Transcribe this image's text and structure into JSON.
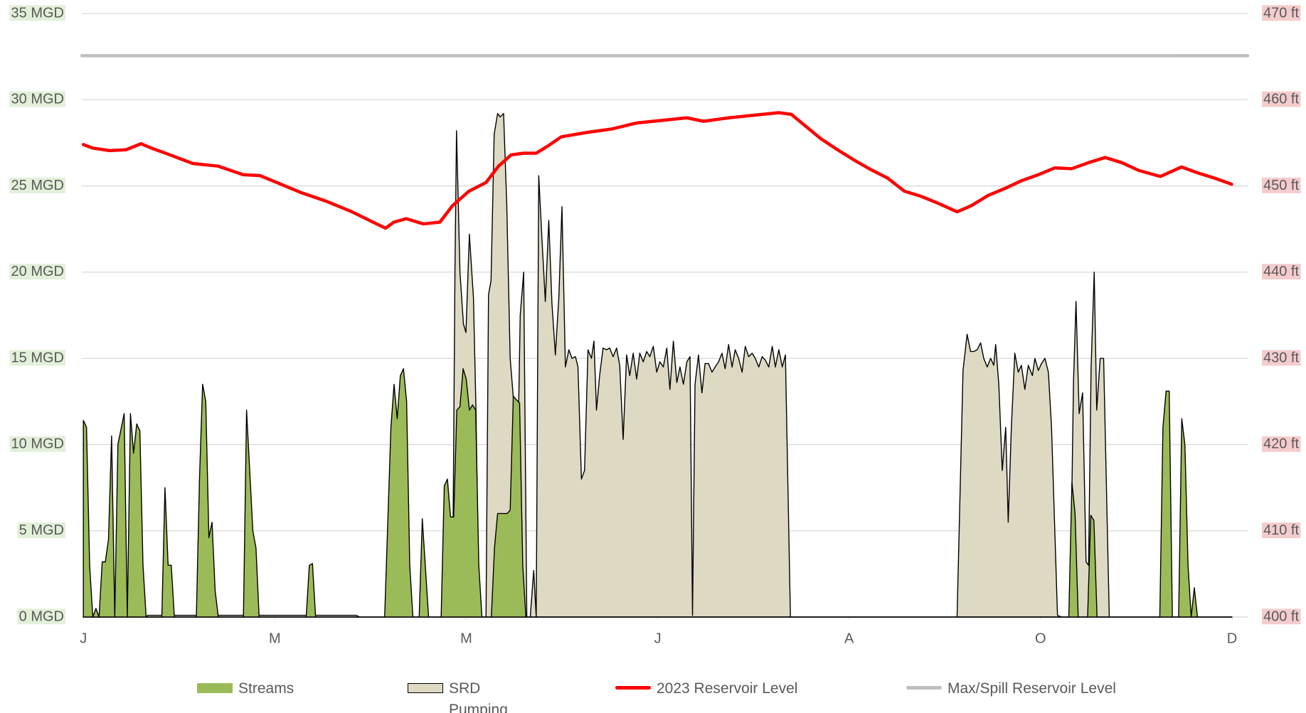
{
  "chart_data": {
    "type": "area",
    "legend": "bottom",
    "grid": true,
    "xlim": [
      -0.5,
      371
    ],
    "xticks": [
      {
        "value": 0,
        "label": "J"
      },
      {
        "value": 61,
        "label": "M"
      },
      {
        "value": 122,
        "label": "M"
      },
      {
        "value": 183,
        "label": "J"
      },
      {
        "value": 244,
        "label": "A"
      },
      {
        "value": 305,
        "label": "O"
      },
      {
        "value": 366,
        "label": "D"
      }
    ],
    "ylim": [
      0,
      35
    ],
    "yticks": [
      {
        "value": 0,
        "label": "0 MGD"
      },
      {
        "value": 5,
        "label": "5 MGD"
      },
      {
        "value": 10,
        "label": "10 MGD"
      },
      {
        "value": 15,
        "label": "15 MGD"
      },
      {
        "value": 20,
        "label": "20 MGD"
      },
      {
        "value": 25,
        "label": "25 MGD"
      },
      {
        "value": 30,
        "label": "30 MGD"
      },
      {
        "value": 35,
        "label": "35 MGD"
      }
    ],
    "y2lim": [
      400,
      470
    ],
    "y2ticks": [
      {
        "value": 400,
        "label": "400 ft"
      },
      {
        "value": 410,
        "label": "410 ft"
      },
      {
        "value": 420,
        "label": "420 ft"
      },
      {
        "value": 430,
        "label": "430 ft"
      },
      {
        "value": 440,
        "label": "440 ft"
      },
      {
        "value": 450,
        "label": "450 ft"
      },
      {
        "value": 460,
        "label": "460 ft"
      },
      {
        "value": 470,
        "label": "470 ft"
      }
    ],
    "series": [
      {
        "name": "SRD Pumping",
        "type": "area",
        "color": "#ddd9c3",
        "x": [
          0,
          20,
          20.5,
          87,
          88,
          117.6,
          118.4,
          118.9,
          120,
          121.1,
          121.9,
          123,
          124.3,
          125.1,
          126.1,
          128.3,
          129.1,
          129.9,
          130.9,
          132,
          132.8,
          133.9,
          134.9,
          136,
          137.1,
          138.4,
          139.2,
          140.3,
          141.3,
          142.4,
          143.5,
          144.3,
          145.1,
          146.1,
          147.2,
          148.3,
          149.3,
          150.4,
          151.5,
          152.5,
          153.6,
          154.7,
          155.7,
          156.8,
          157.6,
          158.7,
          159.7,
          160.8,
          161.9,
          162.7,
          163.5,
          164.5,
          165.6,
          166.7,
          167.7,
          168.8,
          169.9,
          170.9,
          172,
          173.1,
          174.1,
          175.2,
          176.3,
          177.3,
          178.4,
          179.5,
          180.5,
          181.6,
          182.7,
          183.7,
          184.8,
          185.9,
          186.9,
          188,
          189.1,
          190.1,
          191.2,
          192.3,
          193.3,
          194.1,
          194.9,
          196,
          197.1,
          198.1,
          199.2,
          200.3,
          201.3,
          202.4,
          203.5,
          204.5,
          205.6,
          206.7,
          207.7,
          208.8,
          209.9,
          210.9,
          212,
          213.1,
          214.1,
          215.2,
          216.3,
          217.3,
          218.4,
          219.5,
          220.5,
          221.6,
          222.7,
          223.7,
          225.3,
          278.4,
          280.3,
          281.6,
          282.7,
          283.7,
          284.8,
          285.9,
          286.9,
          288,
          289.1,
          290.1,
          290.7,
          291.7,
          292.8,
          293.9,
          294.7,
          295.7,
          296.8,
          297.9,
          298.9,
          300,
          301.1,
          302.4,
          303.2,
          304.3,
          305.3,
          306.4,
          307.5,
          308.5,
          310.4,
          311.7,
          314.4,
          315.5,
          316.3,
          317.3,
          318.4,
          319.5,
          320.3,
          321.1,
          322.1,
          322.9,
          324,
          325.1,
          326.9,
          366
        ],
        "values": [
          0,
          0,
          0.1,
          0.1,
          0,
          0,
          20,
          28.2,
          20,
          17,
          16.5,
          22.2,
          18.5,
          12,
          0,
          0,
          18.7,
          19.5,
          28,
          29.2,
          29,
          29.2,
          24,
          15,
          12.5,
          9,
          17.5,
          20,
          0,
          0,
          2.7,
          0,
          25.6,
          22,
          18.3,
          23,
          18.2,
          15.2,
          18.5,
          23.8,
          14.5,
          15.5,
          15,
          15.1,
          14.5,
          8,
          8.5,
          15.5,
          15,
          16,
          12,
          14,
          15.6,
          15.5,
          15.6,
          15.1,
          15.6,
          14.6,
          10.3,
          15.2,
          14,
          15.3,
          13.8,
          15.3,
          14.8,
          15.4,
          15.1,
          15.7,
          14.2,
          14.8,
          14.5,
          15.6,
          13.2,
          16,
          13.6,
          14.5,
          13.5,
          14.8,
          15.1,
          0.1,
          13.5,
          15.2,
          13,
          14.7,
          14.7,
          14.2,
          14.5,
          14.8,
          15.3,
          14.4,
          15.8,
          14.5,
          15.5,
          15,
          14.2,
          15.7,
          15.1,
          15.3,
          15,
          14.5,
          15.1,
          14.9,
          14.5,
          15.7,
          14.5,
          15.5,
          14.5,
          15.2,
          0,
          0,
          14.3,
          16.4,
          15.4,
          15.4,
          15.5,
          15.9,
          15,
          14.5,
          15,
          14.6,
          15.8,
          13.5,
          8.5,
          11,
          5.5,
          11,
          15.3,
          14.2,
          14.6,
          13.2,
          14.6,
          14,
          15,
          14.3,
          14.7,
          15,
          14.2,
          11,
          0.1,
          0,
          0,
          13.6,
          18.3,
          11.8,
          13,
          3.2,
          3,
          14.4,
          20,
          12,
          15,
          15,
          0,
          0
        ]
      },
      {
        "name": "Streams",
        "type": "area",
        "color": "#9bbb59",
        "x": [
          0,
          1,
          2,
          3,
          4,
          5,
          6,
          7,
          8,
          9,
          10,
          11,
          13,
          14,
          15,
          16,
          17,
          18,
          19,
          20,
          25,
          26,
          27,
          28,
          29,
          36,
          37,
          38,
          39,
          40,
          41,
          42,
          43,
          51,
          52,
          54,
          55,
          56,
          71,
          72,
          73,
          74,
          96,
          98,
          99,
          100,
          101,
          102,
          103,
          104,
          105,
          107,
          108,
          110,
          114,
          115,
          116,
          117,
          118,
          119,
          120,
          121,
          122,
          123,
          124,
          125,
          126,
          127,
          130,
          131,
          132,
          135,
          136,
          137,
          139,
          140,
          141,
          314,
          315,
          316,
          317,
          320,
          321,
          322,
          323,
          343,
          344,
          345,
          346,
          347,
          349,
          350,
          351,
          352,
          353,
          354,
          355,
          366
        ],
        "values": [
          11.4,
          11,
          3,
          0,
          0.5,
          0,
          3.2,
          3.2,
          4.5,
          10.5,
          0,
          10,
          11.8,
          0,
          11.8,
          9.5,
          11.2,
          10.8,
          3,
          0,
          0,
          7.5,
          3,
          3,
          0,
          0,
          8,
          13.5,
          12.5,
          4.6,
          5.5,
          1.5,
          0,
          0,
          12,
          5,
          4,
          0,
          0,
          3,
          3.1,
          0,
          0,
          11,
          13.5,
          11.5,
          14,
          14.4,
          12.5,
          3,
          0,
          0,
          5.7,
          0,
          0,
          7.6,
          8,
          5.8,
          5.8,
          12,
          12.2,
          14.4,
          13.8,
          12,
          12.3,
          12,
          3,
          0,
          0,
          4,
          6,
          6,
          6.2,
          12.8,
          12.4,
          3,
          0,
          0,
          7.8,
          6,
          0,
          0,
          5.9,
          5.6,
          0,
          0,
          11,
          13.1,
          13.1,
          0,
          0,
          11.5,
          10,
          3,
          0,
          1.7,
          0,
          0
        ]
      },
      {
        "name": "2023 Reservoir Level",
        "type": "line",
        "axis": "y2",
        "color": "#ff0000",
        "x": [
          0,
          2.9,
          8.3,
          13.6,
          18.4,
          21.6,
          26.9,
          34.9,
          42.9,
          50.9,
          56.3,
          61.6,
          69.6,
          77.6,
          85.6,
          92.3,
          96.3,
          98.9,
          102.9,
          108.3,
          113.6,
          117.6,
          122.9,
          128.3,
          132.3,
          136.3,
          140.3,
          144.3,
          148.3,
          152.3,
          160.3,
          168.3,
          176.3,
          184.3,
          192.3,
          197.6,
          205.6,
          213.6,
          221.6,
          225.6,
          229.6,
          234.9,
          240.3,
          245.6,
          250.9,
          256.3,
          261.6,
          266.9,
          272.3,
          278.4,
          282.9,
          288.3,
          293.6,
          298.9,
          304.3,
          309.6,
          314.9,
          320.3,
          325.6,
          330.9,
          336.3,
          343.2,
          349.9,
          355.2,
          360.5,
          365.9
        ],
        "values": [
          454.8,
          454.4,
          454.1,
          454.2,
          454.9,
          454.4,
          453.7,
          452.6,
          452.3,
          451.3,
          451.2,
          450.4,
          449.2,
          448.2,
          447,
          445.8,
          445.1,
          445.8,
          446.2,
          445.6,
          445.8,
          447.7,
          449.4,
          450.4,
          452.3,
          453.6,
          453.8,
          453.8,
          454.7,
          455.7,
          456.2,
          456.6,
          457.3,
          457.6,
          457.9,
          457.5,
          457.9,
          458.2,
          458.5,
          458.3,
          457.1,
          455.5,
          454.2,
          453,
          451.9,
          450.9,
          449.4,
          448.8,
          448,
          447,
          447.7,
          448.9,
          449.7,
          450.6,
          451.3,
          452.1,
          452,
          452.7,
          453.3,
          452.7,
          451.8,
          451.1,
          452.2,
          451.5,
          450.9,
          450.2
        ]
      },
      {
        "name": "Max/Spill Reservoir Level",
        "type": "line",
        "axis": "y2",
        "color": "#bfbfbf",
        "x": [
          -0.5,
          371
        ],
        "values": [
          465.1,
          465.1
        ]
      }
    ]
  }
}
